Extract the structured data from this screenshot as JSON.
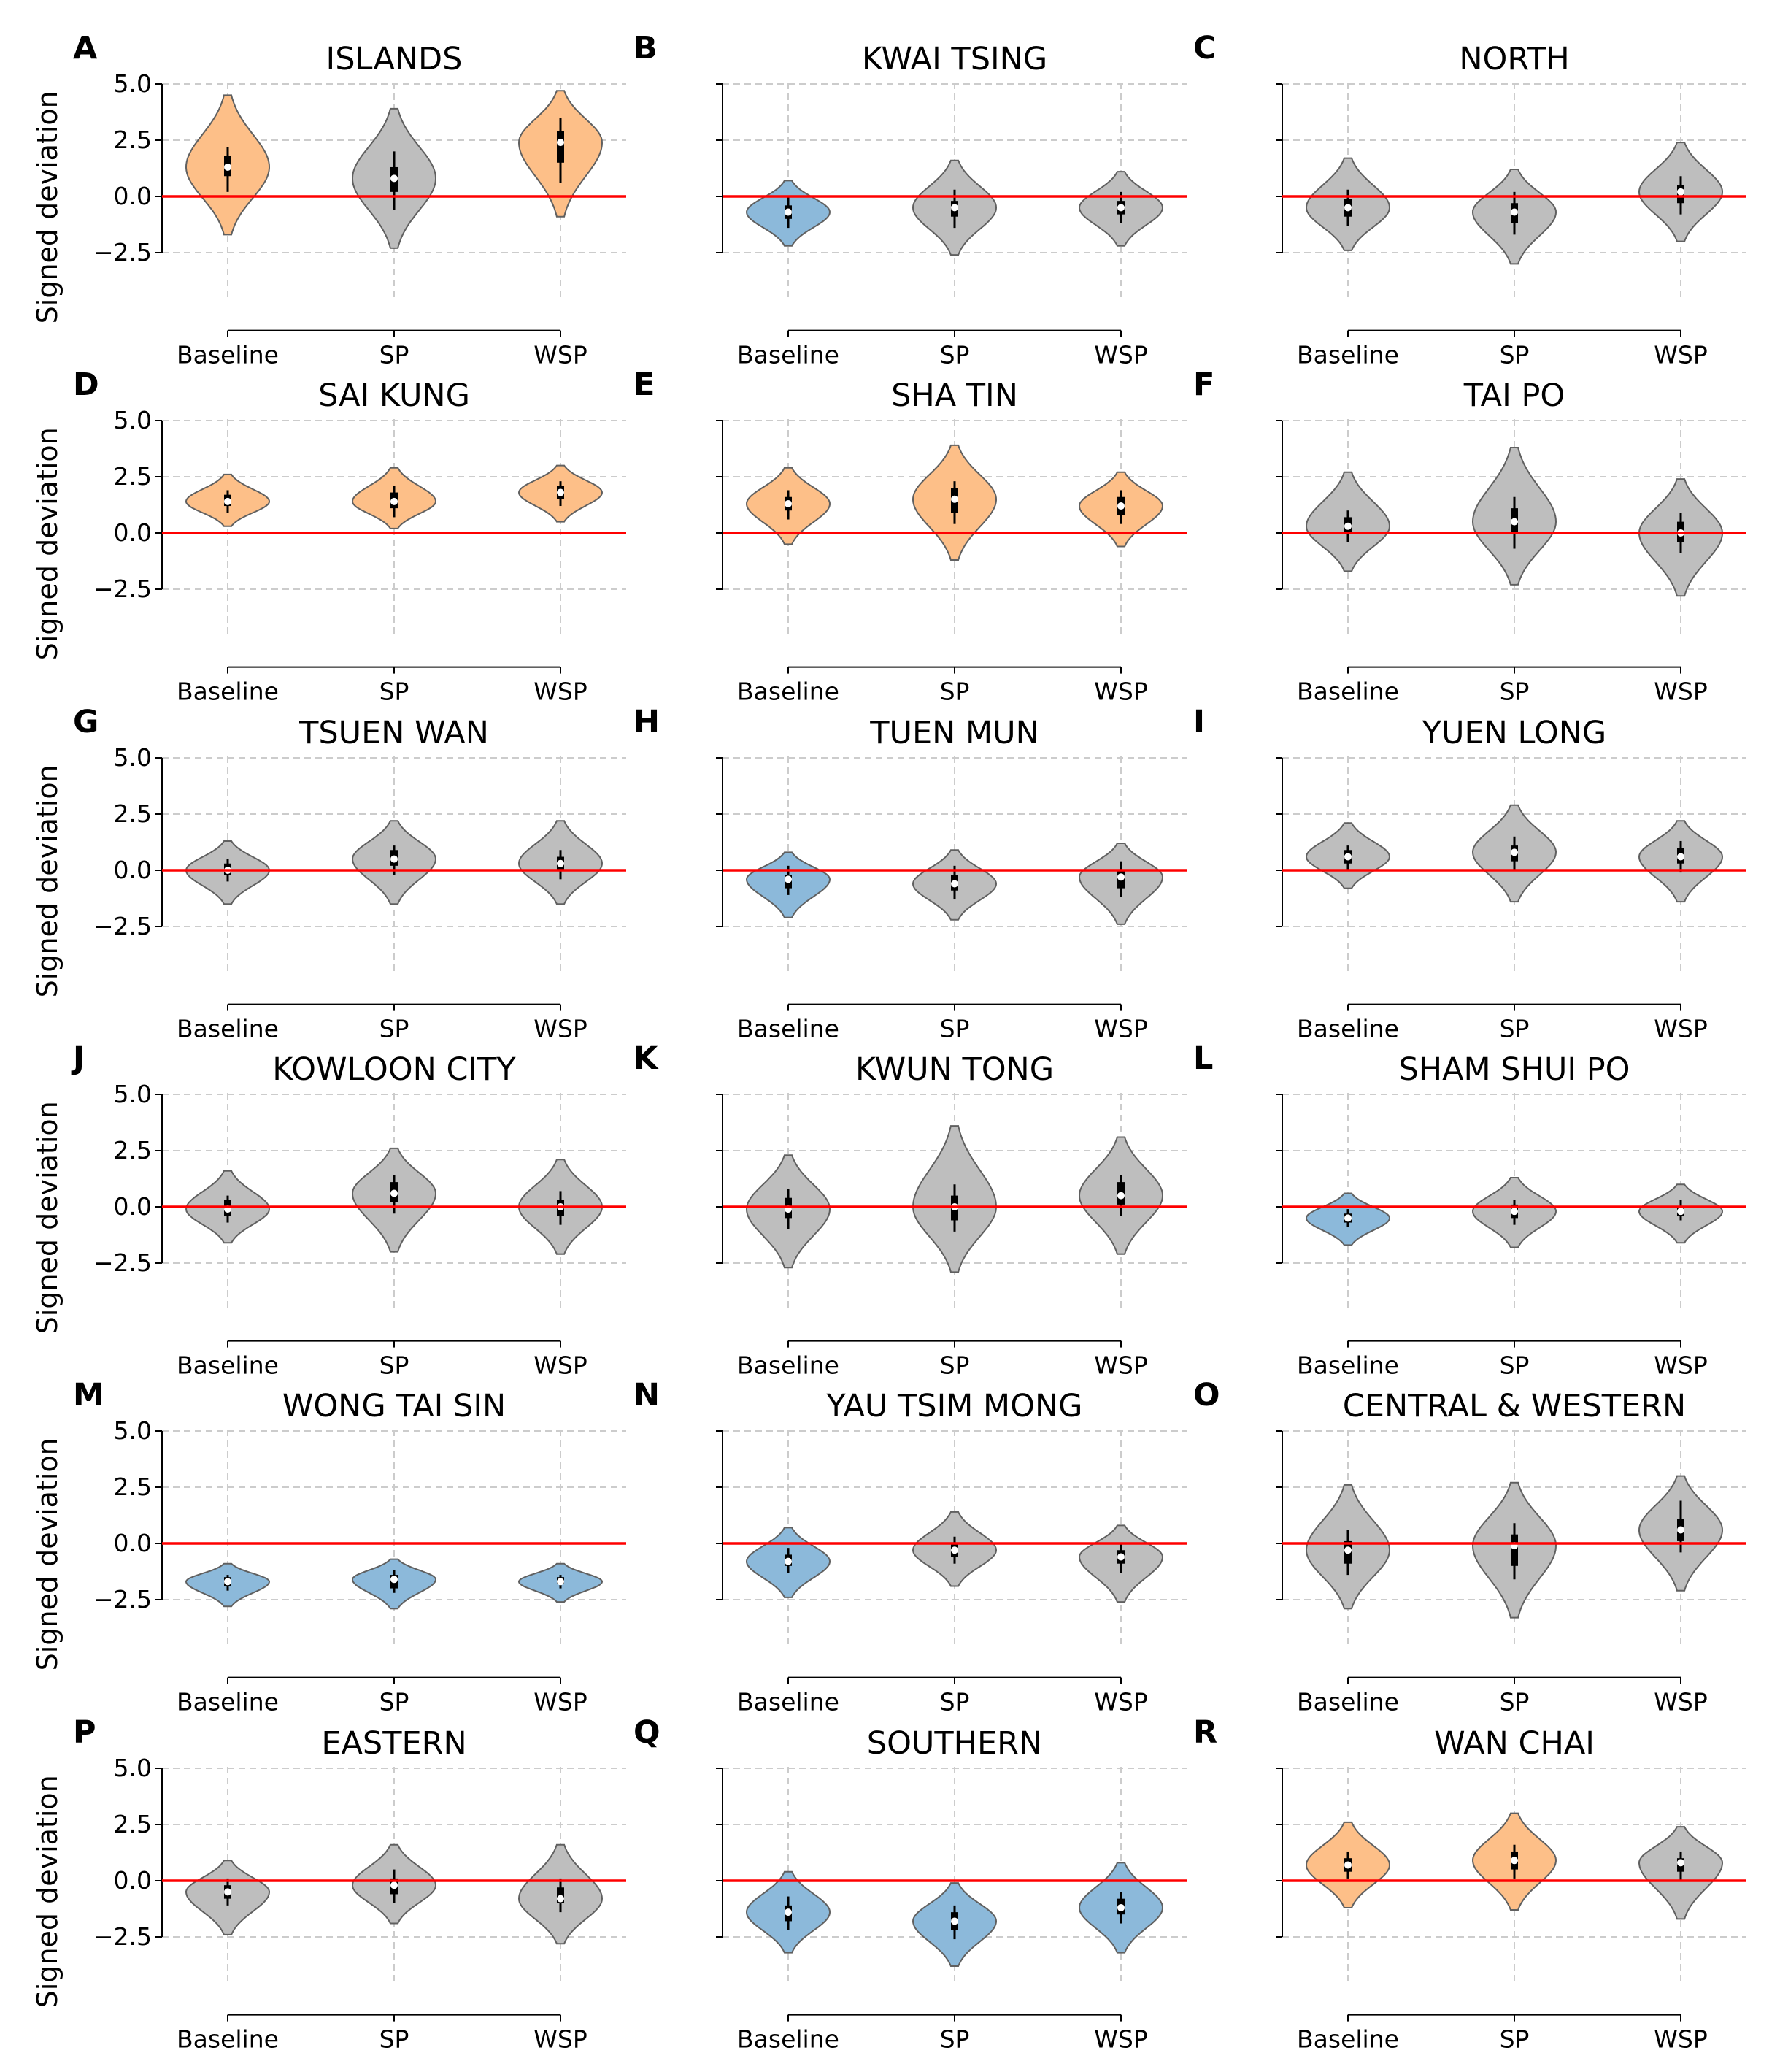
{
  "figure": {
    "ylabel": "Signed deviation",
    "categories": [
      "Baseline",
      "SP",
      "WSP"
    ],
    "yticks": [
      5.0,
      2.5,
      0.0,
      -2.5
    ],
    "ytick_labels": [
      "5.0",
      "2.5",
      "0.0",
      "−2.5"
    ],
    "colors": {
      "above_zero": "#FDBF88",
      "below_zero": "#8CB9DA",
      "not_significant": "#BEBEBE",
      "reference_line": "#FF0000",
      "violin_edge": "#606060",
      "grid": "#CCCCCC"
    }
  },
  "chart_data": {
    "type": "violin",
    "ylim": [
      -4.5,
      5.0
    ],
    "reference_line": 0.0,
    "grid": true,
    "panels": [
      {
        "letter": "A",
        "title": "ISLANDS",
        "violins": [
          {
            "category": "Baseline",
            "median": 1.3,
            "q1": 0.9,
            "q3": 1.8,
            "wlo": 0.2,
            "whi": 2.2,
            "min": -1.7,
            "max": 4.5,
            "class": "above_zero"
          },
          {
            "category": "SP",
            "median": 0.8,
            "q1": 0.2,
            "q3": 1.3,
            "wlo": -0.6,
            "whi": 2.0,
            "min": -2.3,
            "max": 3.9,
            "class": "not_significant"
          },
          {
            "category": "WSP",
            "median": 2.4,
            "q1": 1.5,
            "q3": 2.9,
            "wlo": 0.6,
            "whi": 3.5,
            "min": -0.9,
            "max": 4.7,
            "class": "above_zero"
          }
        ]
      },
      {
        "letter": "B",
        "title": "KWAI TSING",
        "violins": [
          {
            "category": "Baseline",
            "median": -0.7,
            "q1": -1.0,
            "q3": -0.4,
            "wlo": -1.4,
            "whi": 0.0,
            "min": -2.2,
            "max": 0.7,
            "class": "below_zero"
          },
          {
            "category": "SP",
            "median": -0.5,
            "q1": -0.9,
            "q3": -0.2,
            "wlo": -1.4,
            "whi": 0.3,
            "min": -2.6,
            "max": 1.6,
            "class": "not_significant"
          },
          {
            "category": "WSP",
            "median": -0.5,
            "q1": -0.8,
            "q3": -0.2,
            "wlo": -1.2,
            "whi": 0.2,
            "min": -2.2,
            "max": 1.1,
            "class": "not_significant"
          }
        ]
      },
      {
        "letter": "C",
        "title": "NORTH",
        "violins": [
          {
            "category": "Baseline",
            "median": -0.5,
            "q1": -0.9,
            "q3": -0.1,
            "wlo": -1.3,
            "whi": 0.3,
            "min": -2.4,
            "max": 1.7,
            "class": "not_significant"
          },
          {
            "category": "SP",
            "median": -0.7,
            "q1": -1.2,
            "q3": -0.3,
            "wlo": -1.7,
            "whi": 0.2,
            "min": -3.0,
            "max": 1.2,
            "class": "not_significant"
          },
          {
            "category": "WSP",
            "median": 0.2,
            "q1": -0.3,
            "q3": 0.5,
            "wlo": -0.8,
            "whi": 0.9,
            "min": -2.0,
            "max": 2.4,
            "class": "not_significant"
          }
        ]
      },
      {
        "letter": "D",
        "title": "SAI KUNG",
        "violins": [
          {
            "category": "Baseline",
            "median": 1.4,
            "q1": 1.2,
            "q3": 1.7,
            "wlo": 0.9,
            "whi": 1.9,
            "min": 0.3,
            "max": 2.6,
            "class": "above_zero"
          },
          {
            "category": "SP",
            "median": 1.4,
            "q1": 1.1,
            "q3": 1.8,
            "wlo": 0.7,
            "whi": 2.1,
            "min": 0.2,
            "max": 2.9,
            "class": "above_zero"
          },
          {
            "category": "WSP",
            "median": 1.8,
            "q1": 1.5,
            "q3": 2.1,
            "wlo": 1.2,
            "whi": 2.3,
            "min": 0.5,
            "max": 3.0,
            "class": "above_zero"
          }
        ]
      },
      {
        "letter": "E",
        "title": "SHA TIN",
        "violins": [
          {
            "category": "Baseline",
            "median": 1.3,
            "q1": 1.0,
            "q3": 1.6,
            "wlo": 0.6,
            "whi": 1.9,
            "min": -0.5,
            "max": 2.9,
            "class": "above_zero"
          },
          {
            "category": "SP",
            "median": 1.5,
            "q1": 0.9,
            "q3": 2.0,
            "wlo": 0.4,
            "whi": 2.3,
            "min": -1.2,
            "max": 3.9,
            "class": "above_zero"
          },
          {
            "category": "WSP",
            "median": 1.2,
            "q1": 0.8,
            "q3": 1.6,
            "wlo": 0.4,
            "whi": 1.9,
            "min": -0.6,
            "max": 2.7,
            "class": "above_zero"
          }
        ]
      },
      {
        "letter": "F",
        "title": "TAI PO",
        "violins": [
          {
            "category": "Baseline",
            "median": 0.3,
            "q1": 0.0,
            "q3": 0.7,
            "wlo": -0.4,
            "whi": 1.0,
            "min": -1.7,
            "max": 2.7,
            "class": "not_significant"
          },
          {
            "category": "SP",
            "median": 0.5,
            "q1": 0.0,
            "q3": 1.1,
            "wlo": -0.7,
            "whi": 1.6,
            "min": -2.3,
            "max": 3.8,
            "class": "not_significant"
          },
          {
            "category": "WSP",
            "median": 0.0,
            "q1": -0.4,
            "q3": 0.5,
            "wlo": -0.9,
            "whi": 0.9,
            "min": -2.8,
            "max": 2.4,
            "class": "not_significant"
          }
        ]
      },
      {
        "letter": "G",
        "title": "TSUEN WAN",
        "violins": [
          {
            "category": "Baseline",
            "median": 0.0,
            "q1": -0.2,
            "q3": 0.3,
            "wlo": -0.5,
            "whi": 0.5,
            "min": -1.5,
            "max": 1.3,
            "class": "not_significant"
          },
          {
            "category": "SP",
            "median": 0.5,
            "q1": 0.2,
            "q3": 0.9,
            "wlo": -0.2,
            "whi": 1.1,
            "min": -1.5,
            "max": 2.2,
            "class": "not_significant"
          },
          {
            "category": "WSP",
            "median": 0.3,
            "q1": 0.0,
            "q3": 0.6,
            "wlo": -0.4,
            "whi": 0.9,
            "min": -1.5,
            "max": 2.2,
            "class": "not_significant"
          }
        ]
      },
      {
        "letter": "H",
        "title": "TUEN MUN",
        "violins": [
          {
            "category": "Baseline",
            "median": -0.4,
            "q1": -0.8,
            "q3": -0.2,
            "wlo": -1.1,
            "whi": 0.2,
            "min": -2.1,
            "max": 0.8,
            "class": "below_zero"
          },
          {
            "category": "SP",
            "median": -0.6,
            "q1": -0.9,
            "q3": -0.2,
            "wlo": -1.3,
            "whi": 0.2,
            "min": -2.2,
            "max": 0.9,
            "class": "not_significant"
          },
          {
            "category": "WSP",
            "median": -0.3,
            "q1": -0.8,
            "q3": 0.0,
            "wlo": -1.2,
            "whi": 0.4,
            "min": -2.4,
            "max": 1.2,
            "class": "not_significant"
          }
        ]
      },
      {
        "letter": "I",
        "title": "YUEN LONG",
        "violins": [
          {
            "category": "Baseline",
            "median": 0.6,
            "q1": 0.3,
            "q3": 0.9,
            "wlo": 0.0,
            "whi": 1.1,
            "min": -0.8,
            "max": 2.1,
            "class": "not_significant"
          },
          {
            "category": "SP",
            "median": 0.8,
            "q1": 0.4,
            "q3": 1.1,
            "wlo": 0.0,
            "whi": 1.5,
            "min": -1.4,
            "max": 2.9,
            "class": "not_significant"
          },
          {
            "category": "WSP",
            "median": 0.6,
            "q1": 0.3,
            "q3": 1.0,
            "wlo": -0.1,
            "whi": 1.3,
            "min": -1.4,
            "max": 2.2,
            "class": "not_significant"
          }
        ]
      },
      {
        "letter": "J",
        "title": "KOWLOON CITY",
        "violins": [
          {
            "category": "Baseline",
            "median": -0.1,
            "q1": -0.4,
            "q3": 0.3,
            "wlo": -0.7,
            "whi": 0.5,
            "min": -1.6,
            "max": 1.6,
            "class": "not_significant"
          },
          {
            "category": "SP",
            "median": 0.6,
            "q1": 0.2,
            "q3": 1.1,
            "wlo": -0.3,
            "whi": 1.4,
            "min": -2.0,
            "max": 2.6,
            "class": "not_significant"
          },
          {
            "category": "WSP",
            "median": 0.0,
            "q1": -0.4,
            "q3": 0.3,
            "wlo": -0.8,
            "whi": 0.7,
            "min": -2.1,
            "max": 2.1,
            "class": "not_significant"
          }
        ]
      },
      {
        "letter": "K",
        "title": "KWUN TONG",
        "violins": [
          {
            "category": "Baseline",
            "median": -0.1,
            "q1": -0.5,
            "q3": 0.4,
            "wlo": -1.0,
            "whi": 0.8,
            "min": -2.7,
            "max": 2.3,
            "class": "not_significant"
          },
          {
            "category": "SP",
            "median": 0.0,
            "q1": -0.6,
            "q3": 0.5,
            "wlo": -1.1,
            "whi": 1.0,
            "min": -2.9,
            "max": 3.6,
            "class": "not_significant"
          },
          {
            "category": "WSP",
            "median": 0.5,
            "q1": 0.1,
            "q3": 1.1,
            "wlo": -0.4,
            "whi": 1.4,
            "min": -2.1,
            "max": 3.1,
            "class": "not_significant"
          }
        ]
      },
      {
        "letter": "L",
        "title": "SHAM SHUI PO",
        "violins": [
          {
            "category": "Baseline",
            "median": -0.5,
            "q1": -0.7,
            "q3": -0.3,
            "wlo": -0.9,
            "whi": -0.1,
            "min": -1.7,
            "max": 0.6,
            "class": "below_zero"
          },
          {
            "category": "SP",
            "median": -0.2,
            "q1": -0.5,
            "q3": 0.1,
            "wlo": -0.8,
            "whi": 0.3,
            "min": -1.8,
            "max": 1.3,
            "class": "not_significant"
          },
          {
            "category": "WSP",
            "median": -0.2,
            "q1": -0.4,
            "q3": 0.0,
            "wlo": -0.6,
            "whi": 0.3,
            "min": -1.6,
            "max": 1.0,
            "class": "not_significant"
          }
        ]
      },
      {
        "letter": "M",
        "title": "WONG TAI SIN",
        "violins": [
          {
            "category": "Baseline",
            "median": -1.7,
            "q1": -1.9,
            "q3": -1.5,
            "wlo": -2.1,
            "whi": -1.4,
            "min": -2.8,
            "max": -0.9,
            "class": "below_zero"
          },
          {
            "category": "SP",
            "median": -1.6,
            "q1": -2.0,
            "q3": -1.4,
            "wlo": -2.2,
            "whi": -1.2,
            "min": -2.9,
            "max": -0.7,
            "class": "below_zero"
          },
          {
            "category": "WSP",
            "median": -1.7,
            "q1": -1.8,
            "q3": -1.5,
            "wlo": -2.0,
            "whi": -1.4,
            "min": -2.6,
            "max": -0.9,
            "class": "below_zero"
          }
        ]
      },
      {
        "letter": "N",
        "title": "YAU TSIM MONG",
        "violins": [
          {
            "category": "Baseline",
            "median": -0.8,
            "q1": -1.0,
            "q3": -0.5,
            "wlo": -1.3,
            "whi": -0.2,
            "min": -2.4,
            "max": 0.7,
            "class": "below_zero"
          },
          {
            "category": "SP",
            "median": -0.3,
            "q1": -0.6,
            "q3": 0.0,
            "wlo": -0.9,
            "whi": 0.3,
            "min": -1.9,
            "max": 1.4,
            "class": "not_significant"
          },
          {
            "category": "WSP",
            "median": -0.6,
            "q1": -0.9,
            "q3": -0.3,
            "wlo": -1.3,
            "whi": 0.0,
            "min": -2.6,
            "max": 0.8,
            "class": "not_significant"
          }
        ]
      },
      {
        "letter": "O",
        "title": "CENTRAL & WESTERN",
        "violins": [
          {
            "category": "Baseline",
            "median": -0.3,
            "q1": -0.9,
            "q3": 0.1,
            "wlo": -1.4,
            "whi": 0.6,
            "min": -2.9,
            "max": 2.6,
            "class": "not_significant"
          },
          {
            "category": "SP",
            "median": -0.1,
            "q1": -1.0,
            "q3": 0.4,
            "wlo": -1.6,
            "whi": 0.9,
            "min": -3.3,
            "max": 2.7,
            "class": "not_significant"
          },
          {
            "category": "WSP",
            "median": 0.6,
            "q1": 0.1,
            "q3": 1.1,
            "wlo": -0.4,
            "whi": 1.9,
            "min": -2.1,
            "max": 3.0,
            "class": "not_significant"
          }
        ]
      },
      {
        "letter": "P",
        "title": "EASTERN",
        "violins": [
          {
            "category": "Baseline",
            "median": -0.5,
            "q1": -0.8,
            "q3": -0.2,
            "wlo": -1.1,
            "whi": 0.1,
            "min": -2.4,
            "max": 0.9,
            "class": "not_significant"
          },
          {
            "category": "SP",
            "median": -0.2,
            "q1": -0.6,
            "q3": 0.1,
            "wlo": -1.0,
            "whi": 0.5,
            "min": -1.9,
            "max": 1.6,
            "class": "not_significant"
          },
          {
            "category": "WSP",
            "median": -0.8,
            "q1": -1.0,
            "q3": -0.3,
            "wlo": -1.4,
            "whi": 0.1,
            "min": -2.8,
            "max": 1.6,
            "class": "not_significant"
          }
        ]
      },
      {
        "letter": "Q",
        "title": "SOUTHERN",
        "violins": [
          {
            "category": "Baseline",
            "median": -1.4,
            "q1": -1.8,
            "q3": -1.1,
            "wlo": -2.2,
            "whi": -0.7,
            "min": -3.2,
            "max": 0.4,
            "class": "below_zero"
          },
          {
            "category": "SP",
            "median": -1.8,
            "q1": -2.2,
            "q3": -1.4,
            "wlo": -2.6,
            "whi": -1.1,
            "min": -3.8,
            "max": -0.1,
            "class": "below_zero"
          },
          {
            "category": "WSP",
            "median": -1.2,
            "q1": -1.5,
            "q3": -0.8,
            "wlo": -1.9,
            "whi": -0.5,
            "min": -3.2,
            "max": 0.8,
            "class": "below_zero"
          }
        ]
      },
      {
        "letter": "R",
        "title": "WAN CHAI",
        "violins": [
          {
            "category": "Baseline",
            "median": 0.7,
            "q1": 0.4,
            "q3": 1.0,
            "wlo": 0.1,
            "whi": 1.3,
            "min": -1.2,
            "max": 2.6,
            "class": "above_zero"
          },
          {
            "category": "SP",
            "median": 0.9,
            "q1": 0.5,
            "q3": 1.3,
            "wlo": 0.1,
            "whi": 1.6,
            "min": -1.3,
            "max": 3.0,
            "class": "above_zero"
          },
          {
            "category": "WSP",
            "median": 0.8,
            "q1": 0.4,
            "q3": 1.0,
            "wlo": 0.0,
            "whi": 1.3,
            "min": -1.7,
            "max": 2.4,
            "class": "not_significant"
          }
        ]
      }
    ]
  }
}
